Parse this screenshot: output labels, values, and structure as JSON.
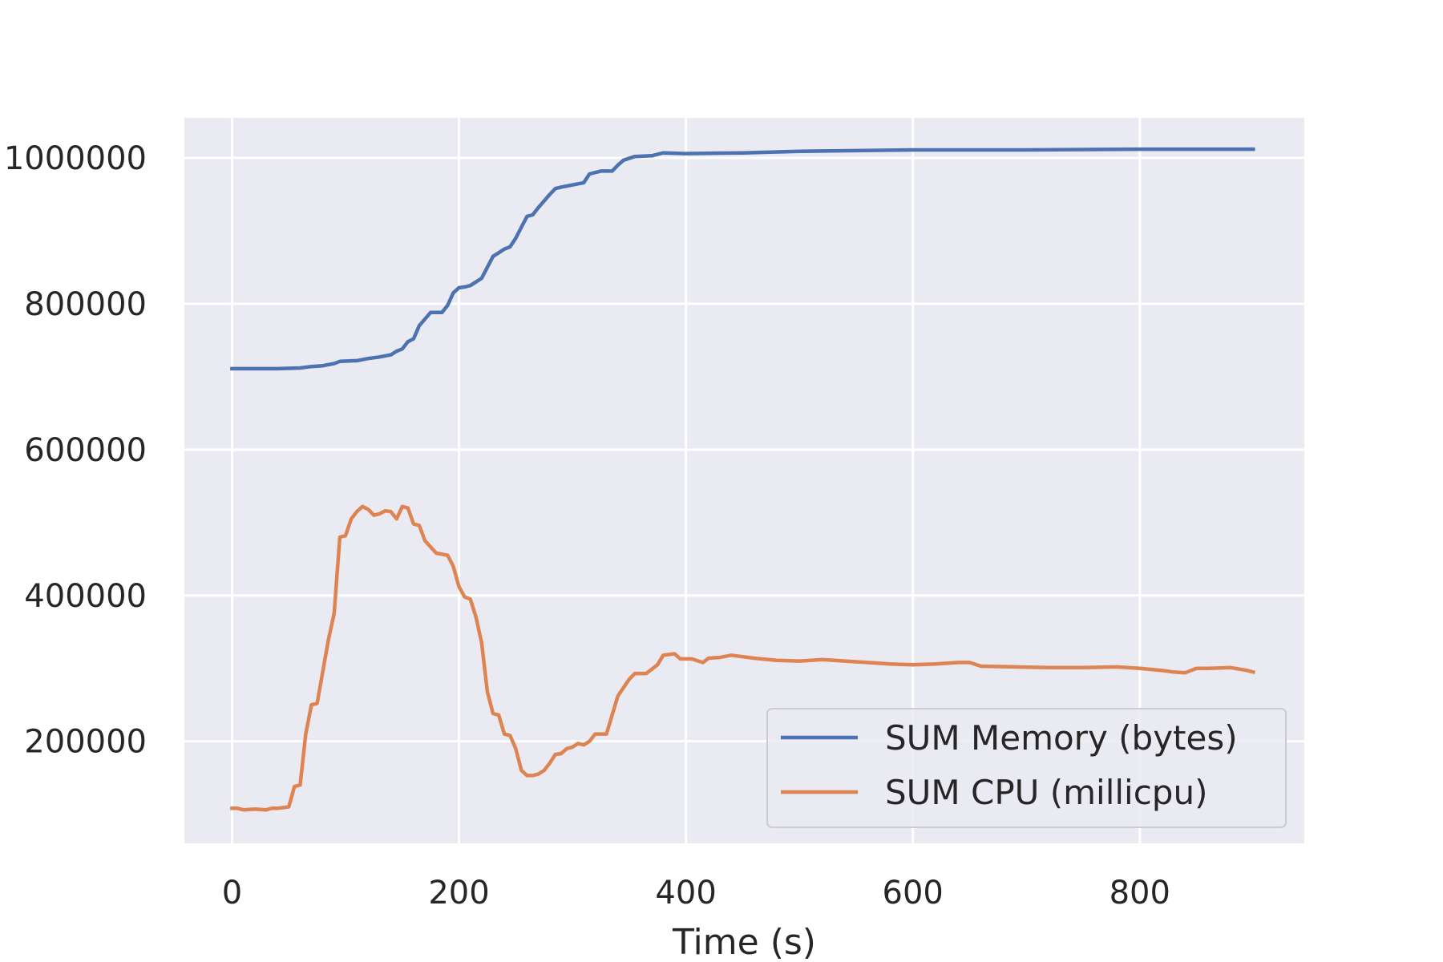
{
  "chart_data": {
    "type": "line",
    "title": "",
    "xlabel": "Time (s)",
    "ylabel": "",
    "xlim": [
      -42,
      945
    ],
    "ylim": [
      60000,
      1055000
    ],
    "xticks": [
      0,
      200,
      400,
      600,
      800
    ],
    "yticks": [
      200000,
      400000,
      600000,
      800000,
      1000000
    ],
    "xtick_labels": [
      "0",
      "200",
      "400",
      "600",
      "800"
    ],
    "ytick_labels": [
      "200000",
      "400000",
      "600000",
      "800000",
      "1000000"
    ],
    "grid": true,
    "background": "#eaeaf2",
    "legend_position": "lower-right",
    "series": [
      {
        "name": "SUM Memory (bytes)",
        "color": "#4c72b0",
        "points": [
          [
            0,
            711000
          ],
          [
            20,
            711000
          ],
          [
            40,
            711000
          ],
          [
            60,
            712000
          ],
          [
            70,
            714000
          ],
          [
            80,
            715000
          ],
          [
            90,
            718000
          ],
          [
            95,
            721000
          ],
          [
            110,
            722000
          ],
          [
            120,
            725000
          ],
          [
            130,
            727000
          ],
          [
            140,
            730000
          ],
          [
            145,
            735000
          ],
          [
            150,
            738000
          ],
          [
            155,
            748000
          ],
          [
            160,
            752000
          ],
          [
            165,
            770000
          ],
          [
            175,
            788000
          ],
          [
            185,
            788000
          ],
          [
            190,
            798000
          ],
          [
            195,
            815000
          ],
          [
            200,
            822000
          ],
          [
            205,
            823000
          ],
          [
            210,
            825000
          ],
          [
            220,
            835000
          ],
          [
            230,
            865000
          ],
          [
            235,
            870000
          ],
          [
            240,
            875000
          ],
          [
            245,
            878000
          ],
          [
            250,
            890000
          ],
          [
            255,
            905000
          ],
          [
            260,
            920000
          ],
          [
            265,
            922000
          ],
          [
            270,
            932000
          ],
          [
            280,
            950000
          ],
          [
            285,
            958000
          ],
          [
            290,
            960000
          ],
          [
            300,
            963000
          ],
          [
            310,
            966000
          ],
          [
            315,
            978000
          ],
          [
            325,
            982000
          ],
          [
            335,
            982000
          ],
          [
            340,
            990000
          ],
          [
            345,
            997000
          ],
          [
            355,
            1002000
          ],
          [
            370,
            1003000
          ],
          [
            380,
            1007000
          ],
          [
            400,
            1006000
          ],
          [
            450,
            1007000
          ],
          [
            500,
            1009000
          ],
          [
            600,
            1011000
          ],
          [
            700,
            1011000
          ],
          [
            800,
            1012000
          ],
          [
            850,
            1012000
          ],
          [
            900,
            1012000
          ]
        ]
      },
      {
        "name": "SUM CPU (millicpu)",
        "color": "#dd8452",
        "points": [
          [
            0,
            108000
          ],
          [
            5,
            108000
          ],
          [
            10,
            106000
          ],
          [
            20,
            107000
          ],
          [
            30,
            106000
          ],
          [
            35,
            108000
          ],
          [
            40,
            108000
          ],
          [
            50,
            110000
          ],
          [
            55,
            138000
          ],
          [
            60,
            140000
          ],
          [
            65,
            210000
          ],
          [
            70,
            250000
          ],
          [
            75,
            252000
          ],
          [
            85,
            340000
          ],
          [
            90,
            375000
          ],
          [
            95,
            480000
          ],
          [
            100,
            482000
          ],
          [
            105,
            505000
          ],
          [
            110,
            515000
          ],
          [
            115,
            522000
          ],
          [
            120,
            518000
          ],
          [
            125,
            510000
          ],
          [
            130,
            512000
          ],
          [
            135,
            516000
          ],
          [
            140,
            515000
          ],
          [
            145,
            505000
          ],
          [
            150,
            522000
          ],
          [
            155,
            520000
          ],
          [
            160,
            498000
          ],
          [
            165,
            496000
          ],
          [
            170,
            475000
          ],
          [
            180,
            458000
          ],
          [
            190,
            455000
          ],
          [
            195,
            440000
          ],
          [
            200,
            412000
          ],
          [
            205,
            398000
          ],
          [
            210,
            395000
          ],
          [
            215,
            370000
          ],
          [
            220,
            335000
          ],
          [
            225,
            268000
          ],
          [
            230,
            238000
          ],
          [
            235,
            236000
          ],
          [
            240,
            210000
          ],
          [
            245,
            208000
          ],
          [
            250,
            190000
          ],
          [
            255,
            160000
          ],
          [
            260,
            153000
          ],
          [
            265,
            153000
          ],
          [
            270,
            155000
          ],
          [
            275,
            160000
          ],
          [
            280,
            170000
          ],
          [
            285,
            182000
          ],
          [
            290,
            183000
          ],
          [
            295,
            190000
          ],
          [
            300,
            192000
          ],
          [
            305,
            197000
          ],
          [
            310,
            195000
          ],
          [
            315,
            200000
          ],
          [
            320,
            210000
          ],
          [
            330,
            210000
          ],
          [
            340,
            262000
          ],
          [
            350,
            285000
          ],
          [
            355,
            293000
          ],
          [
            365,
            293000
          ],
          [
            375,
            305000
          ],
          [
            380,
            318000
          ],
          [
            390,
            320000
          ],
          [
            395,
            313000
          ],
          [
            405,
            313000
          ],
          [
            415,
            308000
          ],
          [
            420,
            314000
          ],
          [
            430,
            315000
          ],
          [
            440,
            318000
          ],
          [
            450,
            316000
          ],
          [
            460,
            314000
          ],
          [
            480,
            311000
          ],
          [
            500,
            310000
          ],
          [
            520,
            312000
          ],
          [
            540,
            310000
          ],
          [
            560,
            308000
          ],
          [
            580,
            306000
          ],
          [
            600,
            305000
          ],
          [
            620,
            306000
          ],
          [
            640,
            308000
          ],
          [
            650,
            308000
          ],
          [
            660,
            303000
          ],
          [
            690,
            302000
          ],
          [
            720,
            301000
          ],
          [
            750,
            301000
          ],
          [
            780,
            302000
          ],
          [
            800,
            300000
          ],
          [
            820,
            297000
          ],
          [
            830,
            295000
          ],
          [
            840,
            294000
          ],
          [
            850,
            300000
          ],
          [
            860,
            300000
          ],
          [
            880,
            301000
          ],
          [
            895,
            297000
          ],
          [
            900,
            295000
          ]
        ]
      }
    ]
  }
}
